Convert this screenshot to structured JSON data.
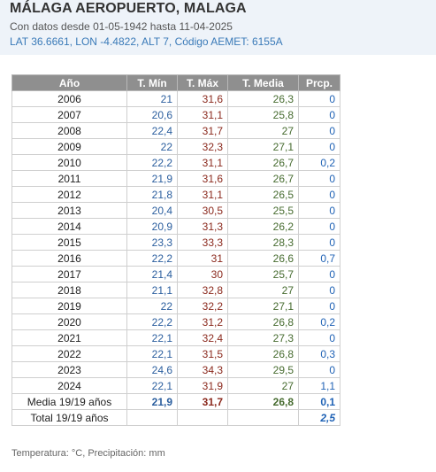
{
  "header": {
    "title": "MÁLAGA AEROPUERTO, MALAGA",
    "subtitle": "Con datos desde 01-05-1942 hasta 11-04-2025",
    "coords": "LAT 36.6661, LON -4.4822, ALT 7, Código AEMET: 6155A"
  },
  "table": {
    "headers": [
      "Año",
      "T. Mín",
      "T. Máx",
      "T. Media",
      "Prcp."
    ],
    "rows": [
      [
        "2006",
        "21",
        "31,6",
        "26,3",
        "0"
      ],
      [
        "2007",
        "20,6",
        "31,1",
        "25,8",
        "0"
      ],
      [
        "2008",
        "22,4",
        "31,7",
        "27",
        "0"
      ],
      [
        "2009",
        "22",
        "32,3",
        "27,1",
        "0"
      ],
      [
        "2010",
        "22,2",
        "31,1",
        "26,7",
        "0,2"
      ],
      [
        "2011",
        "21,9",
        "31,6",
        "26,7",
        "0"
      ],
      [
        "2012",
        "21,8",
        "31,1",
        "26,5",
        "0"
      ],
      [
        "2013",
        "20,4",
        "30,5",
        "25,5",
        "0"
      ],
      [
        "2014",
        "20,9",
        "31,3",
        "26,2",
        "0"
      ],
      [
        "2015",
        "23,3",
        "33,3",
        "28,3",
        "0"
      ],
      [
        "2016",
        "22,2",
        "31",
        "26,6",
        "0,7"
      ],
      [
        "2017",
        "21,4",
        "30",
        "25,7",
        "0"
      ],
      [
        "2018",
        "21,1",
        "32,8",
        "27",
        "0"
      ],
      [
        "2019",
        "22",
        "32,2",
        "27,1",
        "0"
      ],
      [
        "2020",
        "22,2",
        "31,2",
        "26,8",
        "0,2"
      ],
      [
        "2021",
        "22,1",
        "32,4",
        "27,3",
        "0"
      ],
      [
        "2022",
        "22,1",
        "31,5",
        "26,8",
        "0,3"
      ],
      [
        "2023",
        "24,6",
        "34,3",
        "29,5",
        "0"
      ],
      [
        "2024",
        "22,1",
        "31,9",
        "27",
        "1,1"
      ]
    ],
    "mean": {
      "label": "Media 19/19 años",
      "tmin": "21,9",
      "tmax": "31,7",
      "tmed": "26,8",
      "prcp": "0,1"
    },
    "total": {
      "label": "Total 19/19 años",
      "prcp": "2,5"
    }
  },
  "footer": "Temperatura: °C, Precipitación: mm",
  "colors": {
    "header_bg": "#eef3f9",
    "table_header_bg": "#8f8f8f",
    "tmin": "#2b5e9e",
    "tmax": "#8b2a1e",
    "tmed": "#466b2f",
    "prcp": "#1f62b5"
  }
}
